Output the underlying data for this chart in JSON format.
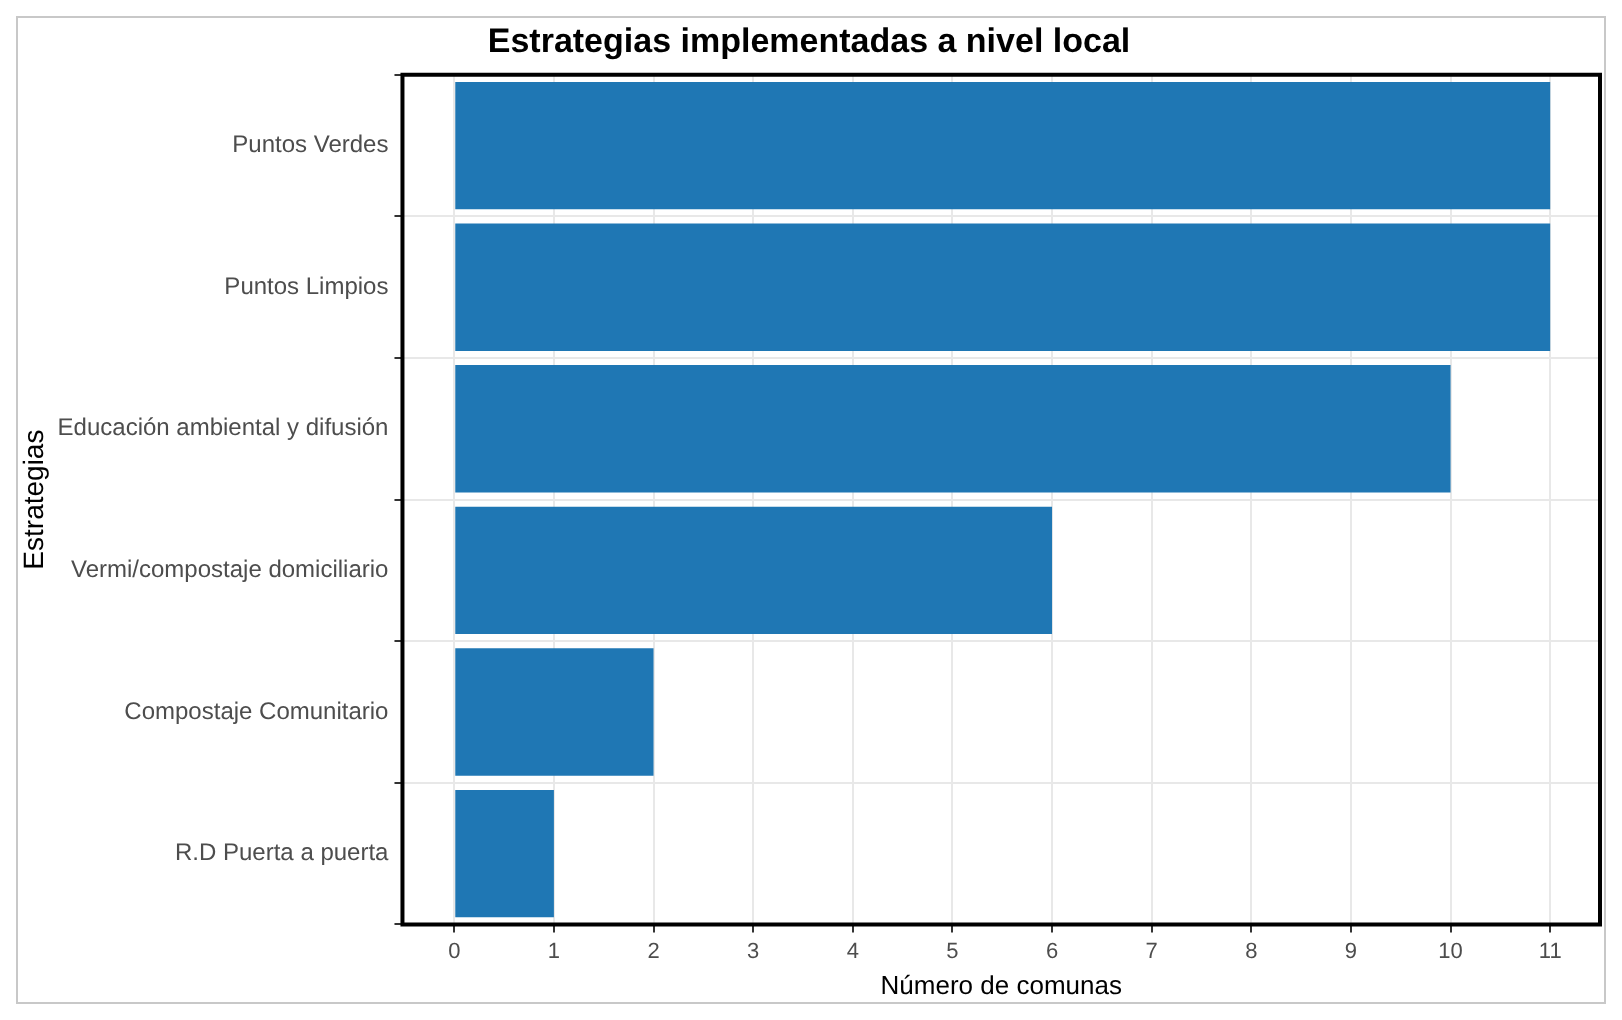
{
  "chart_data": {
    "type": "bar",
    "orientation": "horizontal",
    "title": "Estrategias implementadas a nivel local",
    "xlabel": "Número de comunas",
    "ylabel": "Estrategias",
    "categories": [
      "Puntos Verdes",
      "Puntos Limpios",
      "Educación ambiental y difusión",
      "Vermi/compostaje domiciliario",
      "Compostaje Comunitario",
      "R.D Puerta a puerta"
    ],
    "values": [
      11,
      11,
      10,
      6,
      2,
      1
    ],
    "color": "#1f77b4",
    "xlim": [
      -0.52,
      11.5
    ],
    "xticks": [
      0,
      1,
      2,
      3,
      4,
      5,
      6,
      7,
      8,
      9,
      10,
      11
    ],
    "grid": true,
    "legend": false
  }
}
